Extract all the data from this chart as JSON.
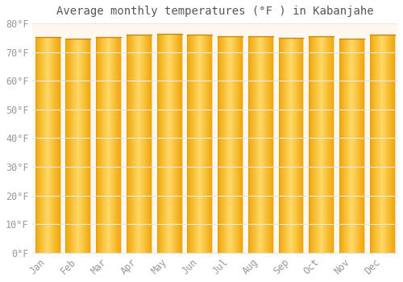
{
  "title": "Average monthly temperatures (°F ) in Kabanjahe",
  "months": [
    "Jan",
    "Feb",
    "Mar",
    "Apr",
    "May",
    "Jun",
    "Jul",
    "Aug",
    "Sep",
    "Oct",
    "Nov",
    "Dec"
  ],
  "values": [
    75.2,
    74.8,
    75.2,
    76.0,
    76.3,
    76.1,
    75.6,
    75.6,
    75.0,
    75.4,
    74.8,
    76.0
  ],
  "ylim": [
    0,
    80
  ],
  "yticks": [
    0,
    10,
    20,
    30,
    40,
    50,
    60,
    70,
    80
  ],
  "ytick_labels": [
    "0°F",
    "10°F",
    "20°F",
    "30°F",
    "40°F",
    "50°F",
    "60°F",
    "70°F",
    "80°F"
  ],
  "bar_color_center": "#FFD966",
  "bar_color_edge": "#F0A500",
  "bar_top_line_color": "#C8860A",
  "background_color": "#FFFFFF",
  "plot_bg_color": "#FFF8EE",
  "grid_color": "#E8E8E8",
  "title_fontsize": 10,
  "tick_fontsize": 8.5,
  "font_color": "#999999",
  "title_color": "#555555"
}
